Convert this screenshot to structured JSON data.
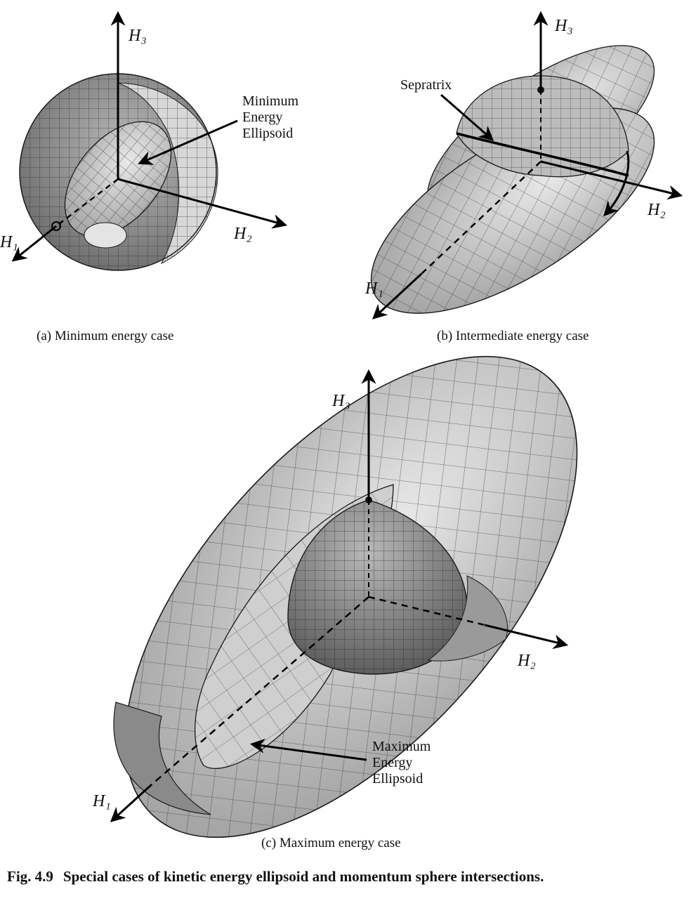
{
  "panels": {
    "a": {
      "caption": "(a) Minimum energy case",
      "callout": [
        "Minimum",
        "Energy",
        "Ellipsoid"
      ],
      "axes": {
        "h1": "H₁",
        "h2": "H₂",
        "h3": "H₃"
      }
    },
    "b": {
      "caption": "(b) Intermediate energy case",
      "callout": "Sepratrix",
      "axes": {
        "h1": "H₁",
        "h2": "H₂",
        "h3": "H₃"
      }
    },
    "c": {
      "caption": "(c) Maximum energy case",
      "callout": [
        "Maximum",
        "Energy",
        "Ellipsoid"
      ],
      "axes": {
        "h1": "H₁",
        "h2": "H₂",
        "h3": "H₃"
      }
    }
  },
  "figure_caption": {
    "number": "Fig. 4.9",
    "text": "Special cases of kinetic energy ellipsoid and momentum sphere intersections."
  },
  "colors": {
    "surface_light": "#d6d6d6",
    "surface_mid": "#a8a8a8",
    "surface_dark": "#6e6e6e",
    "mesh": "#1a1a1a",
    "axis": "#000000"
  }
}
